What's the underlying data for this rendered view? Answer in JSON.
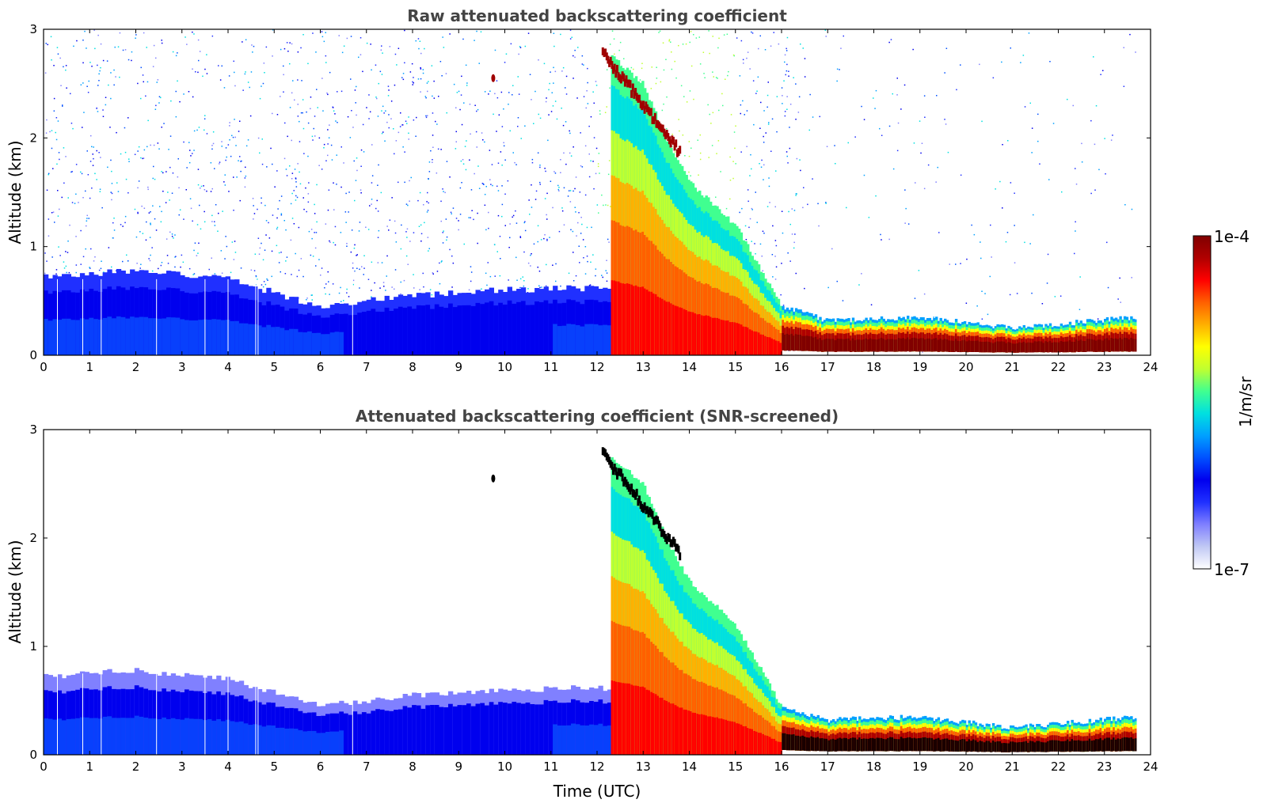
{
  "chart_data": [
    {
      "type": "heatmap",
      "title": "Raw attenuated backscattering coefficient",
      "xlabel": "",
      "ylabel": "Altitude (km)",
      "xlim": [
        0,
        24
      ],
      "ylim": [
        0,
        3
      ],
      "xticks": [
        "0",
        "1",
        "2",
        "3",
        "4",
        "5",
        "6",
        "7",
        "8",
        "9",
        "10",
        "11",
        "12",
        "13",
        "14",
        "15",
        "16",
        "17",
        "18",
        "19",
        "20",
        "21",
        "22",
        "23",
        "24"
      ],
      "yticks": [
        "0",
        "1",
        "2",
        "3"
      ],
      "data_end_time": 23.7,
      "noise": "high"
    },
    {
      "type": "heatmap",
      "title": "Attenuated backscattering coefficient (SNR-screened)",
      "xlabel": "Time (UTC)",
      "ylabel": "Altitude (km)",
      "xlim": [
        0,
        24
      ],
      "ylim": [
        0,
        3
      ],
      "xticks": [
        "0",
        "1",
        "2",
        "3",
        "4",
        "5",
        "6",
        "7",
        "8",
        "9",
        "10",
        "11",
        "12",
        "13",
        "14",
        "15",
        "16",
        "17",
        "18",
        "19",
        "20",
        "21",
        "22",
        "23",
        "24"
      ],
      "yticks": [
        "0",
        "1",
        "2",
        "3"
      ],
      "data_end_time": 23.7,
      "noise": "screened"
    }
  ],
  "features": {
    "boundary_layer_top_km": [
      [
        0,
        0.72
      ],
      [
        2,
        0.78
      ],
      [
        4,
        0.7
      ],
      [
        6,
        0.45
      ],
      [
        8,
        0.55
      ],
      [
        10,
        0.6
      ],
      [
        12,
        0.62
      ],
      [
        13.5,
        0.6
      ]
    ],
    "smoke_plume_descent": [
      [
        12.2,
        2.8
      ],
      [
        13,
        2.5
      ],
      [
        13.5,
        2.0
      ],
      [
        14,
        1.6
      ],
      [
        15,
        1.2
      ],
      [
        16,
        0.45
      ],
      [
        17,
        0.32
      ],
      [
        19,
        0.35
      ],
      [
        21,
        0.25
      ],
      [
        23.7,
        0.35
      ]
    ],
    "profile_gaps_hours": [
      0.3,
      0.85,
      1.25,
      2.45,
      3.5,
      4.0,
      4.6,
      4.65,
      6.7
    ]
  },
  "colorbar": {
    "label": "1/m/sr",
    "max_label": "1e-4",
    "min_label": "1e-7",
    "colors": [
      "#ffffff",
      "#c0c8f4",
      "#8080ff",
      "#2030ff",
      "#0000ee",
      "#0050ff",
      "#00a0ff",
      "#00e0e0",
      "#40ff90",
      "#c0ff30",
      "#ffff00",
      "#ffb000",
      "#ff6000",
      "#ff0000",
      "#b00000",
      "#800000"
    ]
  }
}
